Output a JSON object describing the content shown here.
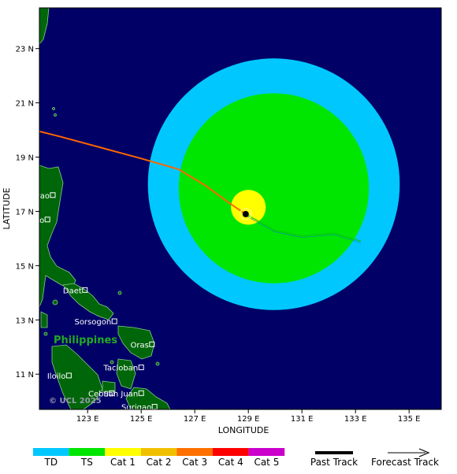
{
  "axes": {
    "xlabel": "LONGITUDE",
    "ylabel": "LATITUDE",
    "lon_range": [
      121.2,
      136.2
    ],
    "lat_range": [
      9.7,
      24.5
    ],
    "lon_ticks": [
      "123 E",
      "125 E",
      "127 E",
      "129 E",
      "131 E",
      "133 E",
      "135 E"
    ],
    "lat_ticks": [
      "23 N",
      "21 N",
      "19 N",
      "17 N",
      "15 N",
      "13 N",
      "11 N"
    ]
  },
  "copyright": "© UCL 2025",
  "country": "Philippines",
  "cities": [
    {
      "name": "Tuguegarao",
      "lon": 121.7,
      "lat": 17.6
    },
    {
      "name": "Santiago",
      "lon": 121.5,
      "lat": 16.7
    },
    {
      "name": "Daet",
      "lon": 122.9,
      "lat": 14.1
    },
    {
      "name": "Sorsogon",
      "lon": 124.0,
      "lat": 12.95
    },
    {
      "name": "Oras",
      "lon": 125.4,
      "lat": 12.1
    },
    {
      "name": "Tacloban",
      "lon": 125.0,
      "lat": 11.25
    },
    {
      "name": "Iloilo",
      "lon": 122.3,
      "lat": 10.95
    },
    {
      "name": "Cebu",
      "lon": 123.9,
      "lat": 10.3
    },
    {
      "name": "San Juan",
      "lon": 125.0,
      "lat": 10.3
    },
    {
      "name": "Surigao",
      "lon": 125.5,
      "lat": 9.8
    }
  ],
  "storm": {
    "center": {
      "lon": 128.9,
      "lat": 16.9
    },
    "wind_field_blue": {
      "lon": 129.95,
      "lat": 18.0,
      "radius_deg": 4.7
    },
    "wind_field_green": {
      "lon": 129.95,
      "lat": 17.85,
      "radius_deg": 3.55
    },
    "cat1_field": {
      "lon": 129.0,
      "lat": 17.15,
      "radius_deg": 0.65
    },
    "past_track": [
      [
        121.2,
        19.95
      ],
      [
        122.0,
        19.75
      ],
      [
        123.5,
        19.35
      ],
      [
        125.0,
        18.95
      ],
      [
        126.4,
        18.55
      ],
      [
        127.4,
        17.95
      ],
      [
        128.3,
        17.3
      ],
      [
        128.9,
        16.9
      ]
    ],
    "forecast_track": [
      [
        128.9,
        16.9
      ],
      [
        130.0,
        16.3
      ],
      [
        131.0,
        16.1
      ],
      [
        132.2,
        16.2
      ],
      [
        133.2,
        15.9
      ]
    ]
  },
  "legend": {
    "categories": [
      {
        "label": "TD",
        "color": "#00c8ff"
      },
      {
        "label": "TS",
        "color": "#00e600"
      },
      {
        "label": "Cat 1",
        "color": "#ffff00"
      },
      {
        "label": "Cat 2",
        "color": "#f0c000"
      },
      {
        "label": "Cat 3",
        "color": "#ff7000"
      },
      {
        "label": "Cat 4",
        "color": "#ff0000"
      },
      {
        "label": "Cat 5",
        "color": "#cc00cc"
      }
    ],
    "past_track": "Past Track",
    "forecast_track": "Forecast Track"
  },
  "colors": {
    "ocean": "#000066",
    "land": "#00660a",
    "land_edge": "#88cc88",
    "track_past": "#ff6600",
    "track_forecast": "#00cc00"
  }
}
